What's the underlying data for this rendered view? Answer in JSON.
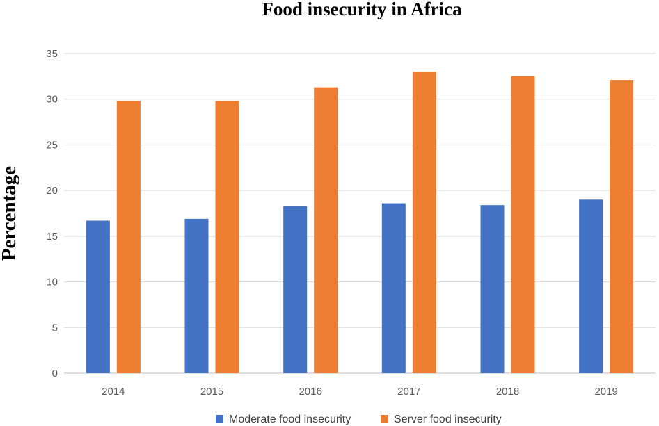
{
  "chart_data": {
    "type": "bar",
    "title": "Food insecurity in Africa",
    "xlabel": "",
    "ylabel": "Percentage",
    "categories": [
      "2014",
      "2015",
      "2016",
      "2017",
      "2018",
      "2019"
    ],
    "series": [
      {
        "name": "Moderate food insecurity",
        "color": "#4472c4",
        "values": [
          16.7,
          16.9,
          18.3,
          18.6,
          18.4,
          19.0
        ]
      },
      {
        "name": "Server food insecurity",
        "color": "#ed7d31",
        "values": [
          29.8,
          29.8,
          31.3,
          33.0,
          32.5,
          32.1
        ]
      }
    ],
    "ylim": [
      0,
      35
    ],
    "yticks": [
      "0",
      "5",
      "10",
      "15",
      "20",
      "25",
      "30",
      "35"
    ],
    "grid": true,
    "legend_position": "bottom"
  }
}
